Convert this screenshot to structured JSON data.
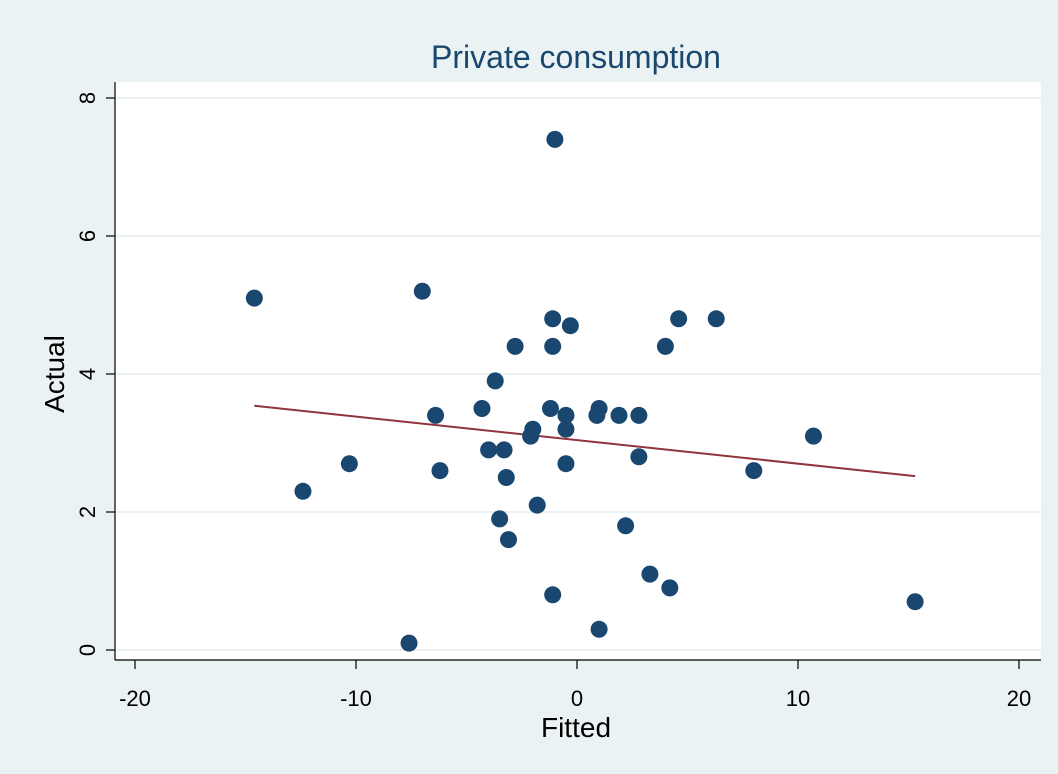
{
  "chart_data": {
    "type": "scatter",
    "title": "Private consumption",
    "xlabel": "Fitted",
    "ylabel": "Actual",
    "xlim": [
      -20,
      20
    ],
    "ylim": [
      0,
      8
    ],
    "xticks": [
      "-20",
      "-10",
      "0",
      "10",
      "20"
    ],
    "yticks": [
      "0",
      "2",
      "4",
      "6",
      "8"
    ],
    "grid": "horizontal",
    "legend": "none",
    "colors": {
      "background": "#eaf2f3",
      "plot_background": "#ffffff",
      "grid": "#eaf2f3",
      "markers": "#1a476f",
      "fit_line": "#90353b",
      "title": "#1a476f"
    },
    "points": [
      {
        "x": -14.6,
        "y": 5.1
      },
      {
        "x": -12.4,
        "y": 2.3
      },
      {
        "x": -10.3,
        "y": 2.7
      },
      {
        "x": -7.6,
        "y": 0.1
      },
      {
        "x": -7.0,
        "y": 5.2
      },
      {
        "x": -6.4,
        "y": 3.4
      },
      {
        "x": -6.2,
        "y": 2.6
      },
      {
        "x": -4.3,
        "y": 3.5
      },
      {
        "x": -4.0,
        "y": 2.9
      },
      {
        "x": -3.7,
        "y": 3.9
      },
      {
        "x": -3.5,
        "y": 1.9
      },
      {
        "x": -3.3,
        "y": 2.9
      },
      {
        "x": -3.2,
        "y": 2.5
      },
      {
        "x": -3.1,
        "y": 1.6
      },
      {
        "x": -2.8,
        "y": 4.4
      },
      {
        "x": -2.1,
        "y": 3.1
      },
      {
        "x": -2.0,
        "y": 3.2
      },
      {
        "x": -1.8,
        "y": 2.1
      },
      {
        "x": -1.2,
        "y": 3.5
      },
      {
        "x": -1.1,
        "y": 4.8
      },
      {
        "x": -1.1,
        "y": 4.4
      },
      {
        "x": -1.1,
        "y": 0.8
      },
      {
        "x": -1.0,
        "y": 7.4
      },
      {
        "x": -0.5,
        "y": 3.4
      },
      {
        "x": -0.5,
        "y": 3.2
      },
      {
        "x": -0.5,
        "y": 2.7
      },
      {
        "x": -0.3,
        "y": 4.7
      },
      {
        "x": 0.9,
        "y": 3.4
      },
      {
        "x": 1.0,
        "y": 3.5
      },
      {
        "x": 1.0,
        "y": 0.3
      },
      {
        "x": 1.9,
        "y": 3.4
      },
      {
        "x": 2.2,
        "y": 1.8
      },
      {
        "x": 2.8,
        "y": 3.4
      },
      {
        "x": 2.8,
        "y": 2.8
      },
      {
        "x": 3.3,
        "y": 1.1
      },
      {
        "x": 4.0,
        "y": 4.4
      },
      {
        "x": 4.2,
        "y": 0.9
      },
      {
        "x": 4.6,
        "y": 4.8
      },
      {
        "x": 6.3,
        "y": 4.8
      },
      {
        "x": 8.0,
        "y": 2.6
      },
      {
        "x": 10.7,
        "y": 3.1
      },
      {
        "x": 15.3,
        "y": 0.7
      }
    ],
    "fit_line": {
      "x": [
        -14.6,
        15.3
      ],
      "y": [
        3.54,
        2.52
      ]
    }
  }
}
